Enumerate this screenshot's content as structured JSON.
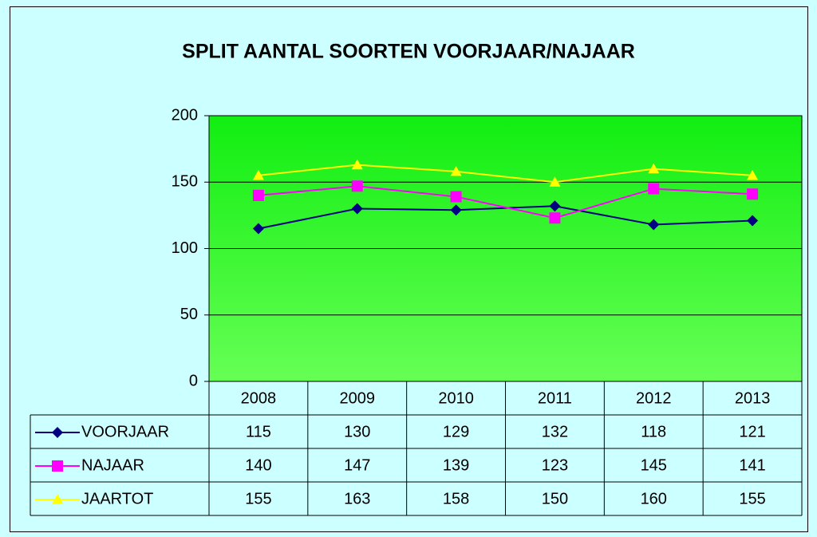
{
  "chart_data": {
    "type": "line",
    "title": "SPLIT AANTAL SOORTEN VOORJAAR/NAJAAR",
    "categories": [
      "2008",
      "2009",
      "2010",
      "2011",
      "2012",
      "2013"
    ],
    "series": [
      {
        "name": "VOORJAAR",
        "color": "#000080",
        "marker": "diamond",
        "values": [
          115,
          130,
          129,
          132,
          118,
          121
        ]
      },
      {
        "name": "NAJAAR",
        "color": "#ff00ff",
        "marker": "square",
        "values": [
          140,
          147,
          139,
          123,
          145,
          141
        ]
      },
      {
        "name": "JAARTOT",
        "color": "#ffff00",
        "marker": "triangle",
        "values": [
          155,
          163,
          158,
          150,
          160,
          155
        ]
      }
    ],
    "ylim": [
      0,
      200
    ],
    "yticks": [
      0,
      50,
      100,
      150,
      200
    ],
    "grid": true,
    "data_table": true
  }
}
